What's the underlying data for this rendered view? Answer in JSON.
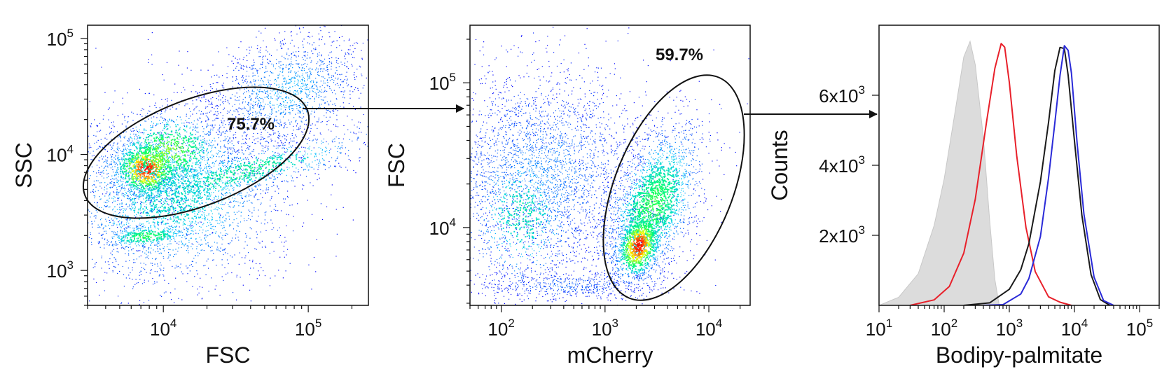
{
  "chart_data": [
    {
      "type": "scatter",
      "xlabel": "FSC",
      "ylabel": "SSC",
      "x_scale": "log",
      "y_scale": "log",
      "xlim": [
        3000,
        260000
      ],
      "ylim": [
        500,
        130000
      ],
      "x_ticks": [
        {
          "value": 10000,
          "base": "10",
          "exp": "4"
        },
        {
          "value": 100000,
          "base": "10",
          "exp": "5"
        }
      ],
      "y_ticks": [
        {
          "value": 1000,
          "base": "10",
          "exp": "3"
        },
        {
          "value": 10000,
          "base": "10",
          "exp": "4"
        },
        {
          "value": 100000,
          "base": "10",
          "exp": "5"
        }
      ],
      "gate": {
        "shape": "ellipse",
        "label": "75.7%",
        "percent": 75.7
      },
      "density_colormap": [
        "#0000ff",
        "#00c8ff",
        "#00ff66",
        "#ffff00",
        "#ff0000"
      ]
    },
    {
      "type": "scatter",
      "xlabel": "mCherry",
      "ylabel": "FSC",
      "x_scale": "log",
      "y_scale": "log",
      "xlim": [
        50,
        25000
      ],
      "ylim": [
        2900,
        250000
      ],
      "x_ticks": [
        {
          "value": 100,
          "base": "10",
          "exp": "2"
        },
        {
          "value": 1000,
          "base": "10",
          "exp": "3"
        },
        {
          "value": 10000,
          "base": "10",
          "exp": "4"
        }
      ],
      "y_ticks": [
        {
          "value": 10000,
          "base": "10",
          "exp": "4"
        },
        {
          "value": 100000,
          "base": "10",
          "exp": "5"
        }
      ],
      "gate": {
        "shape": "ellipse",
        "label": "59.7%",
        "percent": 59.7
      },
      "density_colormap": [
        "#0000ff",
        "#00c8ff",
        "#00ff66",
        "#ffff00",
        "#ff0000"
      ]
    },
    {
      "type": "line",
      "subtype": "histogram",
      "xlabel": "Bodipy-palmitate",
      "ylabel": "Counts",
      "x_scale": "log",
      "xlim": [
        10,
        200000
      ],
      "ylim": [
        0,
        8000
      ],
      "x_ticks": [
        {
          "value": 10,
          "base": "10",
          "exp": "1"
        },
        {
          "value": 100,
          "base": "10",
          "exp": "2"
        },
        {
          "value": 1000,
          "base": "10",
          "exp": "3"
        },
        {
          "value": 10000,
          "base": "10",
          "exp": "4"
        },
        {
          "value": 100000,
          "base": "10",
          "exp": "5"
        }
      ],
      "y_ticks": [
        {
          "value": 2000,
          "base": "2x10",
          "exp": "3"
        },
        {
          "value": 4000,
          "base": "4x10",
          "exp": "3"
        },
        {
          "value": 6000,
          "base": "6x10",
          "exp": "3"
        }
      ],
      "series": [
        {
          "color": "#c8c8c8",
          "filled": true,
          "x": [
            10,
            20,
            40,
            70,
            100,
            150,
            200,
            250,
            300,
            400,
            500,
            600,
            700
          ],
          "y": [
            0,
            250,
            900,
            2300,
            3600,
            5600,
            7100,
            7500,
            6900,
            4800,
            2400,
            700,
            0
          ]
        },
        {
          "color": "#e8202a",
          "filled": false,
          "x": [
            30,
            70,
            120,
            200,
            300,
            450,
            600,
            750,
            850,
            1000,
            1300,
            1800,
            2500,
            4000,
            6000,
            9000
          ],
          "y": [
            0,
            120,
            500,
            1500,
            3000,
            5300,
            6800,
            7500,
            7400,
            6400,
            4300,
            2200,
            1000,
            250,
            60,
            0
          ]
        },
        {
          "color": "#1a1a1a",
          "filled": false,
          "x": [
            200,
            500,
            1000,
            1500,
            2000,
            3000,
            4000,
            5000,
            6000,
            7000,
            8000,
            10000,
            13000,
            18000,
            25000,
            35000
          ],
          "y": [
            0,
            80,
            450,
            1000,
            1800,
            3500,
            5200,
            6700,
            7400,
            7300,
            6600,
            4700,
            2600,
            900,
            200,
            0
          ]
        },
        {
          "color": "#2a2ad8",
          "filled": false,
          "x": [
            400,
            800,
            1500,
            2000,
            3000,
            4000,
            5000,
            6000,
            7000,
            8000,
            9000,
            11000,
            14000,
            20000,
            28000,
            40000
          ],
          "y": [
            0,
            60,
            350,
            800,
            2000,
            3600,
            5200,
            6600,
            7400,
            7300,
            6600,
            4600,
            2600,
            800,
            150,
            0
          ]
        }
      ]
    }
  ]
}
